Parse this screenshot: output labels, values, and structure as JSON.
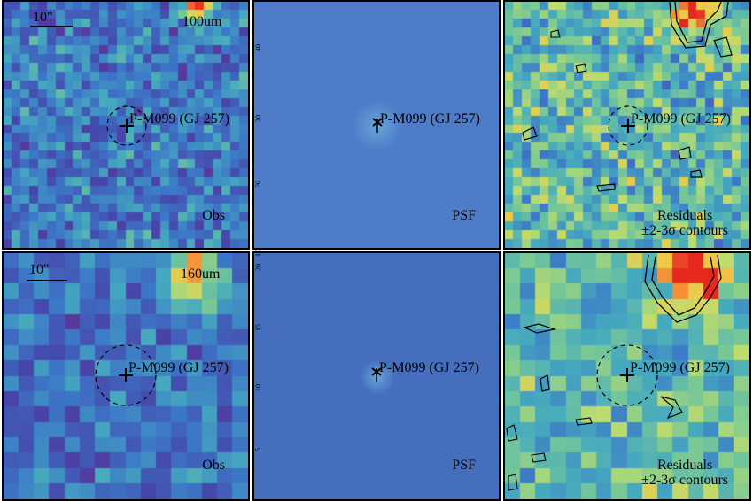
{
  "source_label": "P-M099 (GJ 257)",
  "scale_bar_label": "10\"",
  "rows": [
    {
      "band": "100um",
      "panels": [
        {
          "kind": "Obs",
          "label": "Obs"
        },
        {
          "kind": "PSF",
          "label": "PSF"
        },
        {
          "kind": "Residuals",
          "label": "Residuals",
          "sublabel": "±2-3σ contours"
        }
      ]
    },
    {
      "band": "160um",
      "panels": [
        {
          "kind": "Obs",
          "label": "Obs"
        },
        {
          "kind": "PSF",
          "label": "PSF"
        },
        {
          "kind": "Residuals",
          "label": "Residuals",
          "sublabel": "±2-3σ contours"
        }
      ]
    }
  ],
  "psf_axis_ticks_row1": [
    "40",
    "30",
    "20",
    "10"
  ],
  "psf_axis_ticks_row2": [
    "20",
    "15",
    "10",
    "5"
  ],
  "colors": {
    "psf_background_row1": "#4f7cc8",
    "psf_background_row2": "#456fbd",
    "hot": "#e8281e",
    "frame": "#000000"
  }
}
